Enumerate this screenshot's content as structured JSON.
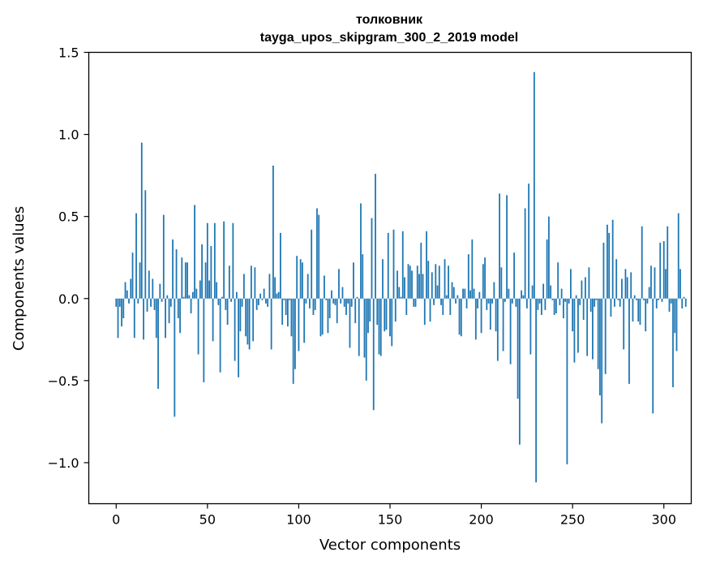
{
  "chart_data": {
    "type": "bar",
    "title": "толковник",
    "subtitle": "tayga_upos_skipgram_300_2_2019 model",
    "xlabel": "Vector components",
    "ylabel": "Components values",
    "xlim": [
      -15,
      315
    ],
    "ylim": [
      -1.25,
      1.5
    ],
    "xticks": [
      0,
      50,
      100,
      150,
      200,
      250,
      300
    ],
    "yticks": [
      -1.0,
      -0.5,
      0.0,
      0.5,
      1.0,
      1.5
    ],
    "ytick_labels": [
      "−1.0",
      "−0.5",
      "0.0",
      "0.5",
      "1.0",
      "1.5"
    ],
    "bar_color": "#1f77b4",
    "values": [
      -0.05,
      -0.24,
      -0.05,
      -0.17,
      -0.12,
      0.1,
      0.05,
      -0.03,
      0.12,
      0.28,
      -0.24,
      0.52,
      -0.03,
      0.22,
      0.95,
      -0.25,
      0.66,
      -0.08,
      0.17,
      -0.05,
      0.12,
      -0.07,
      -0.24,
      -0.55,
      0.09,
      -0.02,
      0.51,
      -0.24,
      0.02,
      -0.15,
      -0.05,
      0.36,
      -0.72,
      0.3,
      -0.12,
      -0.21,
      0.25,
      0.01,
      0.22,
      0.22,
      0.02,
      -0.09,
      0.04,
      0.57,
      0.06,
      -0.34,
      0.11,
      0.33,
      -0.51,
      0.22,
      0.46,
      0.11,
      0.32,
      -0.26,
      0.46,
      0.1,
      -0.04,
      -0.45,
      0.01,
      0.47,
      -0.07,
      -0.16,
      0.2,
      -0.02,
      0.46,
      -0.38,
      0.04,
      -0.48,
      -0.2,
      -0.05,
      0.15,
      -0.23,
      -0.28,
      -0.31,
      0.2,
      -0.26,
      0.19,
      -0.07,
      -0.04,
      0.03,
      -0.01,
      0.06,
      -0.03,
      -0.05,
      0.15,
      -0.31,
      0.81,
      0.13,
      0.03,
      0.04,
      0.4,
      -0.16,
      -0.01,
      -0.1,
      -0.17,
      -0.01,
      -0.23,
      -0.52,
      -0.43,
      0.26,
      -0.32,
      0.24,
      0.22,
      -0.27,
      -0.03,
      0.15,
      -0.06,
      0.42,
      -0.1,
      -0.07,
      0.55,
      0.51,
      -0.23,
      -0.22,
      0.14,
      -0.01,
      -0.21,
      -0.12,
      0.05,
      -0.03,
      -0.04,
      -0.15,
      0.18,
      -0.03,
      0.07,
      -0.05,
      -0.1,
      -0.03,
      -0.3,
      -0.05,
      0.22,
      -0.15,
      0.01,
      -0.35,
      0.58,
      0.27,
      -0.36,
      -0.5,
      -0.21,
      -0.14,
      0.49,
      -0.68,
      0.76,
      -0.16,
      -0.34,
      -0.35,
      0.24,
      -0.2,
      -0.19,
      0.4,
      -0.23,
      -0.29,
      0.42,
      -0.14,
      0.17,
      0.07,
      0.01,
      0.41,
      0.13,
      -0.1,
      0.21,
      0.2,
      0.17,
      -0.05,
      -0.05,
      0.2,
      0.15,
      0.34,
      0.15,
      -0.16,
      0.41,
      0.23,
      -0.14,
      0.16,
      -0.04,
      0.21,
      0.08,
      0.2,
      -0.04,
      -0.1,
      0.24,
      0.02,
      0.2,
      -0.1,
      0.1,
      0.07,
      -0.03,
      0.02,
      -0.22,
      -0.23,
      0.06,
      0.06,
      -0.06,
      0.27,
      0.05,
      0.36,
      0.06,
      -0.25,
      -0.06,
      0.04,
      -0.21,
      0.21,
      0.25,
      -0.07,
      -0.03,
      -0.19,
      -0.03,
      0.1,
      -0.2,
      -0.38,
      0.64,
      0.19,
      -0.32,
      -0.02,
      0.63,
      0.06,
      -0.4,
      -0.03,
      0.28,
      -0.05,
      -0.61,
      -0.89,
      0.05,
      0.02,
      0.55,
      -0.06,
      0.7,
      -0.34,
      0.08,
      1.38,
      -1.12,
      -0.07,
      -0.03,
      -0.1,
      0.09,
      -0.07,
      0.36,
      0.5,
      0.08,
      -0.01,
      -0.1,
      -0.09,
      0.22,
      -0.04,
      0.06,
      -0.12,
      -0.02,
      -1.01,
      -0.03,
      0.18,
      -0.2,
      -0.39,
      0.02,
      -0.33,
      -0.04,
      0.11,
      -0.13,
      0.13,
      -0.35,
      0.19,
      -0.08,
      -0.37,
      -0.05,
      -0.01,
      -0.43,
      -0.59,
      -0.76,
      0.34,
      -0.46,
      0.45,
      0.4,
      -0.11,
      0.48,
      -0.05,
      0.24,
      -0.01,
      -0.05,
      0.12,
      -0.31,
      0.18,
      0.13,
      -0.52,
      0.16,
      -0.14,
      0.02,
      -0.01,
      -0.14,
      -0.16,
      0.44,
      -0.01,
      -0.2,
      -0.03,
      0.07,
      0.2,
      -0.7,
      0.19,
      -0.06,
      -0.01,
      0.34,
      -0.02,
      0.35,
      0.18,
      0.44,
      -0.08,
      -0.03,
      -0.54,
      -0.21,
      -0.32,
      0.52,
      0.18,
      -0.06,
      0.01,
      -0.05
    ]
  }
}
